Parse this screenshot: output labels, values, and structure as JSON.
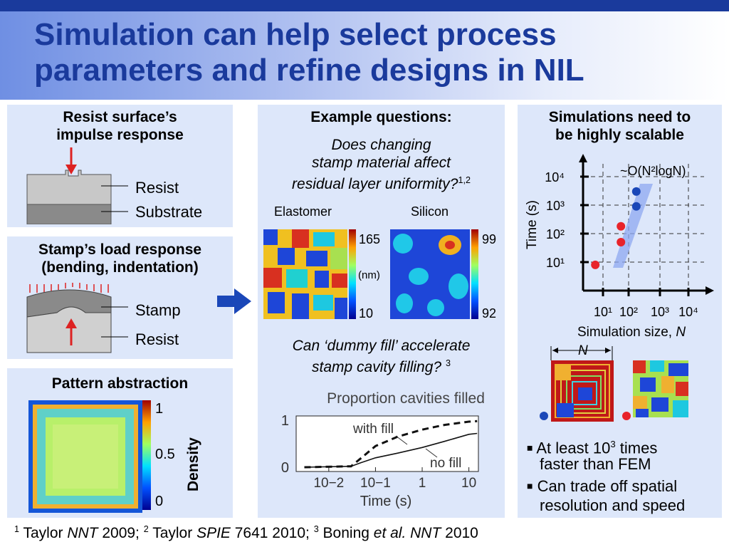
{
  "title_line1": "Simulation can help select process",
  "title_line2": "parameters and refine designs in NIL",
  "panel1": {
    "title_l1": "Resist surface’s",
    "title_l2": "impulse response",
    "label_resist": "Resist",
    "label_substrate": "Substrate"
  },
  "panel2": {
    "title_l1": "Stamp’s load response",
    "title_l2": "(bending, indentation)",
    "label_stamp": "Stamp",
    "label_resist": "Resist"
  },
  "panel3": {
    "title": "Pattern abstraction",
    "cb_top": "1",
    "cb_mid": "0.5",
    "cb_bottom": "0",
    "cb_label": "Density"
  },
  "panel4": {
    "title": "Example questions:",
    "q1_l1": "Does changing",
    "q1_l2": "stamp material affect",
    "q1_l3": "residual layer uniformity?",
    "q1_ref": "1,2",
    "elastomer": "Elastomer",
    "silicon": "Silicon",
    "e_max": "165",
    "e_unit": "(nm)",
    "e_min": "10",
    "s_max": "99",
    "s_min": "92",
    "q2_l1": "Can ‘dummy fill’ accelerate",
    "q2_l2": "stamp cavity filling?",
    "q2_ref": "3"
  },
  "panel5": {
    "title_l1": "Simulations need to",
    "title_l2": "be highly scalable",
    "n_label": "N",
    "bullet1_l1": "At least 10",
    "bullet1_sup": "3",
    "bullet1_l1b": " times",
    "bullet1_l2": "faster than FEM",
    "bullet2_l1": "Can trade off spatial",
    "bullet2_l2": "resolution and speed"
  },
  "footnote": {
    "p1_sup": "1",
    "p1a": " Taylor ",
    "p1_it": "NNT",
    "p1b": " 2009; ",
    "p2_sup": "2",
    "p2a": " Taylor ",
    "p2_it": "SPIE",
    "p2b": " 7641 2010; ",
    "p3_sup": "3",
    "p3a": " Boning ",
    "p3_it": "et al. NNT",
    "p3b": " 2010"
  },
  "chart_data": [
    {
      "type": "line",
      "title": "Proportion cavities filled",
      "xlabel": "Time (s)",
      "ylabel": "",
      "xscale": "log",
      "xticks": [
        "10−2",
        "10−1",
        "1",
        "10"
      ],
      "yticks": [
        "0",
        "1"
      ],
      "ylim": [
        0,
        1
      ],
      "series": [
        {
          "name": "with fill",
          "style": "dashed",
          "x": [
            0.003,
            0.03,
            0.05,
            0.1,
            0.3,
            1,
            3,
            10,
            15
          ],
          "y": [
            0,
            0.02,
            0.2,
            0.45,
            0.65,
            0.8,
            0.9,
            0.97,
            0.98
          ]
        },
        {
          "name": "no fill",
          "style": "solid",
          "x": [
            0.003,
            0.03,
            0.05,
            0.1,
            0.3,
            1,
            3,
            10,
            15
          ],
          "y": [
            0,
            0.02,
            0.1,
            0.2,
            0.3,
            0.42,
            0.55,
            0.7,
            0.72
          ]
        }
      ]
    },
    {
      "type": "scatter",
      "xlabel_text": "Simulation size, ",
      "xlabel_var": "N",
      "ylabel": "Time (s)",
      "xscale": "log",
      "yscale": "log",
      "xticks": [
        "10¹",
        "10²",
        "10³",
        "10⁴"
      ],
      "yticks": [
        "10¹",
        "10²",
        "10³",
        "10⁴"
      ],
      "annotation": "~O(N²logN)",
      "series": [
        {
          "name": "",
          "color": "#e8232a",
          "points": [
            [
              5,
              8
            ],
            [
              50,
              50
            ],
            [
              50,
              180
            ]
          ]
        },
        {
          "name": "",
          "color": "#1a47b8",
          "points": [
            [
              200,
              900
            ],
            [
              200,
              3000
            ]
          ]
        }
      ]
    }
  ]
}
